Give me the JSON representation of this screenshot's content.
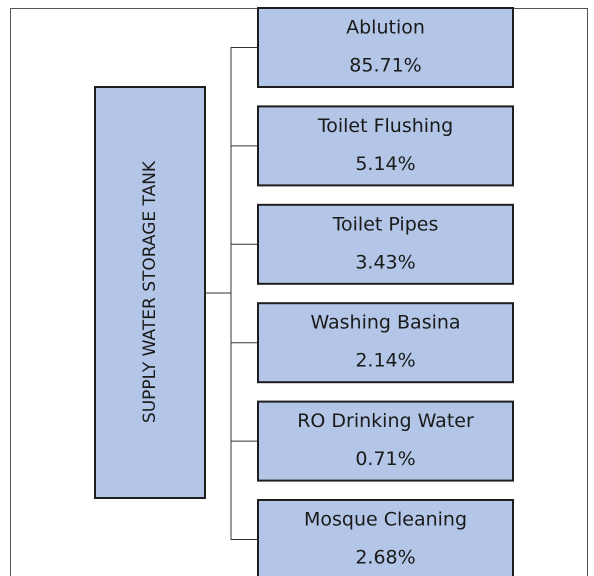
{
  "root": {
    "label": "SUPPLY WATER STORAGE TANK"
  },
  "nodes": [
    {
      "label": "Ablution",
      "value": "85.71%"
    },
    {
      "label": "Toilet Flushing",
      "value": "5.14%"
    },
    {
      "label": "Toilet Pipes",
      "value": "3.43%"
    },
    {
      "label": "Washing Basina",
      "value": "2.14%"
    },
    {
      "label": "RO Drinking Water",
      "value": "0.71%"
    },
    {
      "label": "Mosque Cleaning",
      "value": "2.68%"
    }
  ]
}
